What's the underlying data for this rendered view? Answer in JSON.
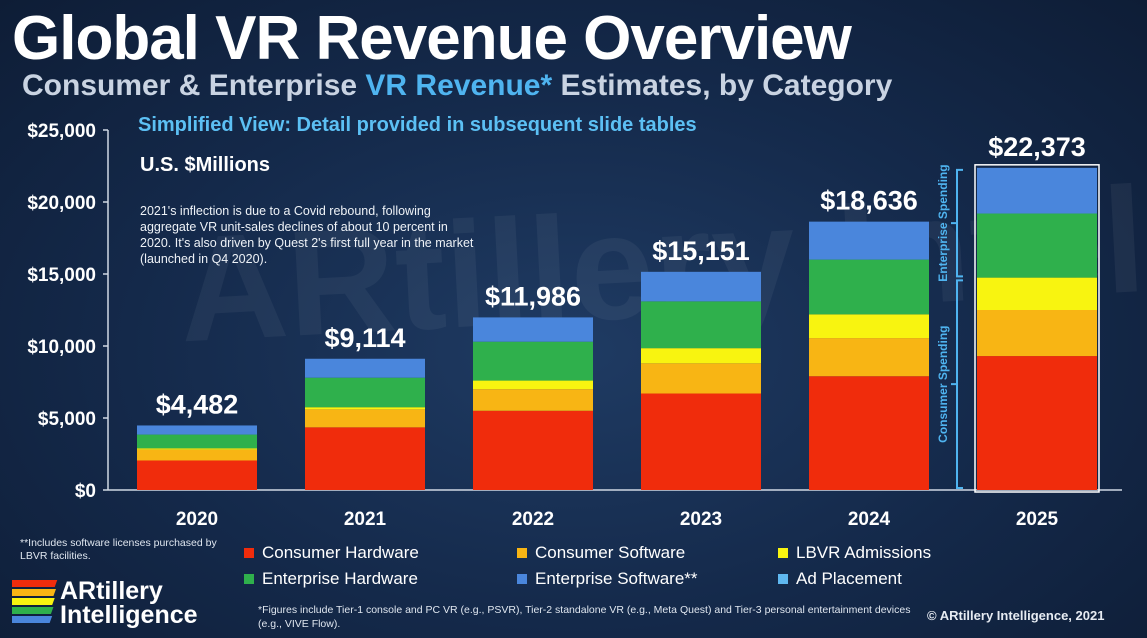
{
  "header": {
    "title": "Global VR Revenue Overview",
    "subtitle_pre": "Consumer & Enterprise ",
    "subtitle_highlight": "VR Revenue*",
    "subtitle_post": " Estimates, by Category"
  },
  "simplified_view": "Simplified View: Detail provided in subsequent slide tables",
  "units_label": "U.S. $Millions",
  "inflection_note": "2021's inflection is due to a Covid rebound, following aggregate VR unit-sales declines of about 10 percent in 2020. It's also driven by Quest 2's first full year in the market (launched in Q4 2020).",
  "footnote_left": "**Includes software licenses purchased by LBVR facilities.",
  "footnote_bottom": "*Figures include Tier-1 console and PC VR (e.g., PSVR), Tier-2 standalone VR (e.g., Meta Quest) and Tier-3 personal entertainment devices (e.g., VIVE Flow).",
  "copyright": "© ARtillery Intelligence, 2021",
  "logo": {
    "line1": "ARtillery",
    "line2": "Intelligence"
  },
  "watermark": "ARtillery Intelligence",
  "colors": {
    "consumer_hardware": "#f02c0c",
    "consumer_software": "#f8b514",
    "lbvr": "#f8f410",
    "enterprise_hardware": "#2fb04c",
    "enterprise_software": "#4a86dc",
    "ad_placement": "#5fb8f0"
  },
  "chart_data": {
    "type": "bar",
    "stacked": true,
    "title": "Global VR Revenue Overview",
    "ylabel": "U.S. $Millions",
    "ylim": [
      0,
      25000
    ],
    "yticks": [
      "$0",
      "$5,000",
      "$10,000",
      "$15,000",
      "$20,000",
      "$25,000"
    ],
    "ytick_values": [
      0,
      5000,
      10000,
      15000,
      20000,
      25000
    ],
    "categories": [
      "2020",
      "2021",
      "2022",
      "2023",
      "2024",
      "2025"
    ],
    "totals": [
      4482,
      9114,
      11986,
      15151,
      18636,
      22373
    ],
    "total_labels": [
      "$4,482",
      "$9,114",
      "$11,986",
      "$15,151",
      "$18,636",
      "$22,373"
    ],
    "series": [
      {
        "name": "Consumer Hardware",
        "color_key": "consumer_hardware",
        "values": [
          2050,
          4350,
          5500,
          6700,
          7900,
          9300
        ]
      },
      {
        "name": "Consumer Software",
        "color_key": "consumer_software",
        "values": [
          750,
          1250,
          1500,
          2100,
          2650,
          3200
        ]
      },
      {
        "name": "LBVR Admissions",
        "color_key": "lbvr",
        "values": [
          100,
          150,
          600,
          1050,
          1650,
          2250
        ]
      },
      {
        "name": "Enterprise Hardware",
        "color_key": "enterprise_hardware",
        "values": [
          950,
          2050,
          2700,
          3250,
          3800,
          4450
        ]
      },
      {
        "name": "Enterprise Software**",
        "color_key": "enterprise_software",
        "values": [
          632,
          1314,
          1686,
          2051,
          2636,
          3173
        ]
      },
      {
        "name": "Ad Placement",
        "color_key": "ad_placement",
        "values": [
          0,
          0,
          0,
          0,
          0,
          0
        ]
      }
    ],
    "brackets": [
      {
        "label": "Enterprise Spending",
        "from": 14700,
        "to": 22373
      },
      {
        "label": "Consumer Spending",
        "from": 0,
        "to": 14700
      }
    ]
  }
}
